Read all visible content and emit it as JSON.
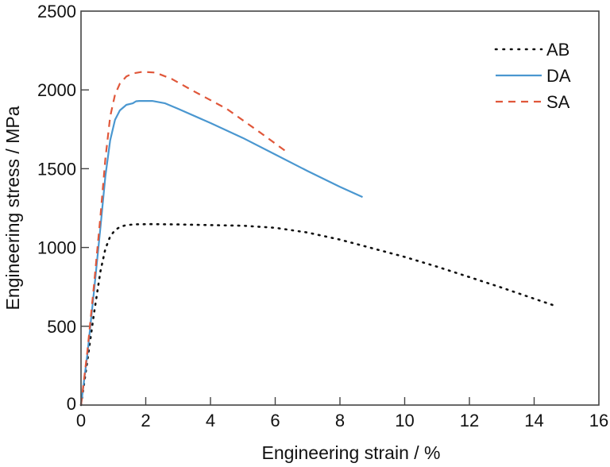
{
  "chart_data": {
    "type": "line",
    "title": "",
    "xlabel": "Engineering strain / %",
    "ylabel": "Engineering stress / MPa",
    "xlim": [
      0,
      16
    ],
    "ylim": [
      0,
      2500
    ],
    "xticks": [
      "0",
      "2",
      "4",
      "6",
      "8",
      "10",
      "12",
      "14",
      "16"
    ],
    "yticks": [
      "0",
      "500",
      "1000",
      "1500",
      "2000",
      "2500"
    ],
    "xtick_values": [
      0,
      2,
      4,
      6,
      8,
      10,
      12,
      14,
      16
    ],
    "ytick_values": [
      0,
      500,
      1000,
      1500,
      2000,
      2500
    ],
    "grid": false,
    "legend_position": "top-right",
    "series": [
      {
        "name": "AB",
        "style": "dotted",
        "color": "#111111",
        "x": [
          0,
          0.2,
          0.4,
          0.6,
          0.75,
          0.9,
          1.05,
          1.2,
          1.4,
          1.7,
          2.2,
          3,
          4,
          5,
          6,
          7,
          8,
          9,
          10,
          11,
          12,
          13,
          14,
          14.6
        ],
        "y": [
          0,
          290,
          580,
          850,
          990,
          1070,
          1110,
          1130,
          1142,
          1147,
          1148,
          1146,
          1142,
          1138,
          1125,
          1095,
          1050,
          995,
          940,
          878,
          812,
          745,
          675,
          633
        ]
      },
      {
        "name": "DA",
        "style": "solid",
        "color": "#4a97d0",
        "x": [
          0,
          0.2,
          0.4,
          0.6,
          0.75,
          0.9,
          1.05,
          1.2,
          1.4,
          1.6,
          1.7,
          1.8,
          2.2,
          2.6,
          3,
          4,
          5,
          6,
          7,
          8,
          8.7
        ],
        "y": [
          0,
          330,
          720,
          1130,
          1450,
          1680,
          1810,
          1870,
          1905,
          1915,
          1928,
          1930,
          1930,
          1915,
          1880,
          1790,
          1695,
          1590,
          1485,
          1385,
          1320
        ]
      },
      {
        "name": "SA",
        "style": "dashed",
        "color": "#e0573a",
        "x": [
          0,
          0.2,
          0.4,
          0.6,
          0.75,
          0.9,
          1.05,
          1.2,
          1.4,
          1.6,
          1.9,
          2.3,
          2.8,
          3.5,
          4.5,
          5.5,
          6.4
        ],
        "y": [
          0,
          350,
          760,
          1200,
          1560,
          1830,
          1970,
          2040,
          2085,
          2105,
          2115,
          2110,
          2070,
          1990,
          1880,
          1735,
          1600
        ]
      }
    ]
  }
}
